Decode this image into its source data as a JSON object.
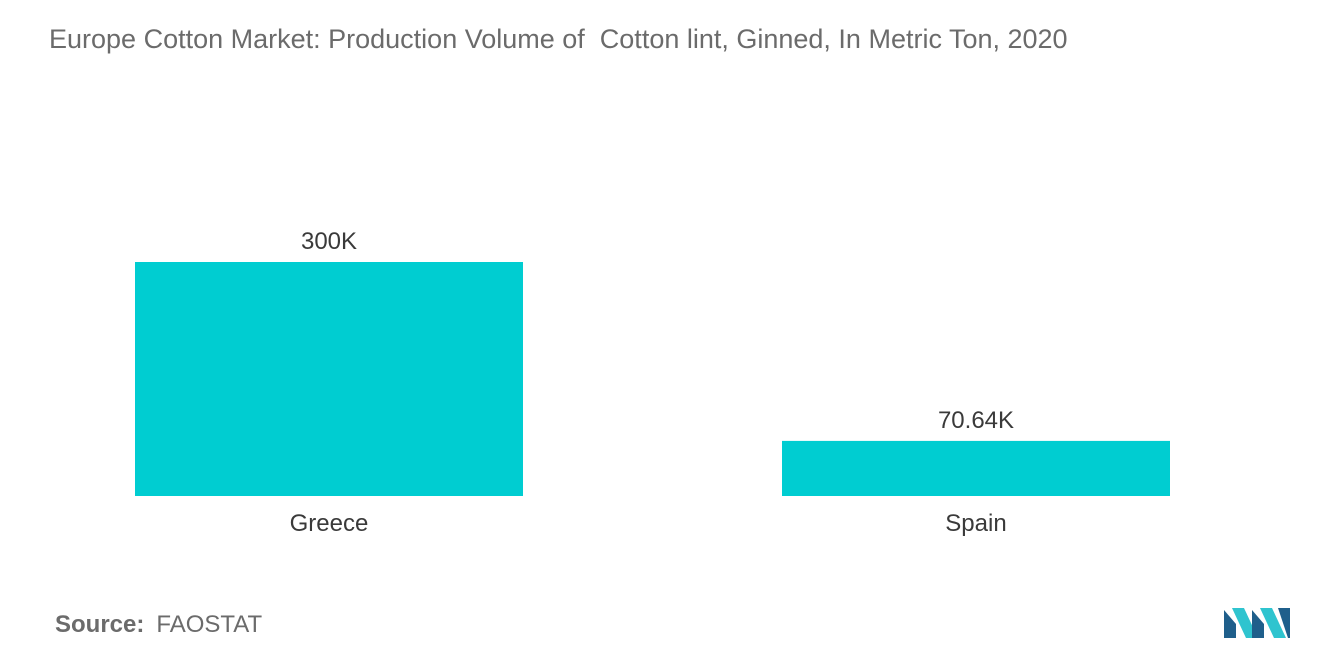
{
  "chart_data": {
    "type": "bar",
    "title": "Europe Cotton Market: Production Volume of  Cotton lint, Ginned, In Metric Ton, 2020",
    "categories": [
      "Greece",
      "Spain"
    ],
    "values": [
      300000,
      70640
    ],
    "data_labels": [
      "300K",
      "70.64K"
    ],
    "ylim": [
      0,
      300000
    ],
    "grid": false,
    "legend": "none",
    "bar_color": "#00cdd1"
  },
  "source": {
    "label": "Source:",
    "value": "FAOSTAT"
  },
  "logo": {
    "icon": "mordor-intelligence-logo-icon",
    "colors": [
      "#1f5f8b",
      "#2fc4cf"
    ]
  }
}
